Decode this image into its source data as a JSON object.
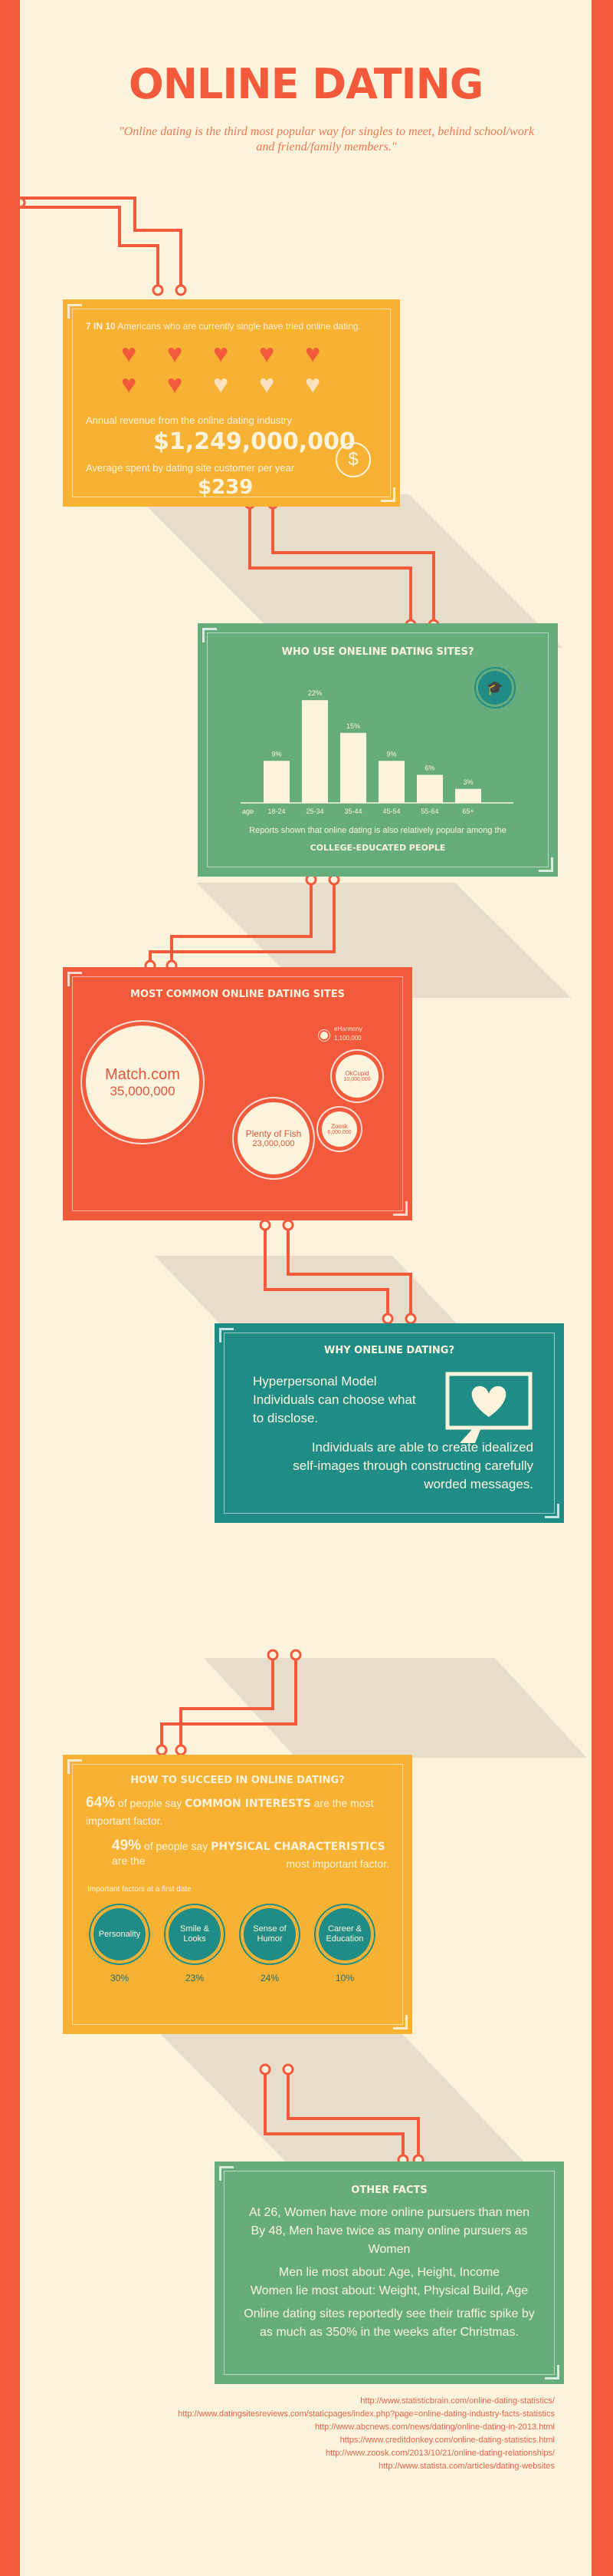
{
  "header": {
    "title": "ONLINE DATING",
    "quote": "\"Online dating is the third most popular way for singles to meet, behind school/work and friend/family members.\""
  },
  "stats": {
    "heading_strong": "7 IN 10",
    "heading_rest": "Americans who are currently single have tried online dating.",
    "hearts_filled": 7,
    "hearts_total": 10,
    "revenue_label": "Annual revenue from the online dating industry",
    "revenue_value": "$1,249,000,000",
    "spend_label": "Average spent by dating site customer per year",
    "spend_value": "$239",
    "dollar_icon": "$"
  },
  "who": {
    "title": "WHO USE ONELINE DATING SITES?",
    "age_label": "age",
    "note": "Reports shown that online dating is also relatively popular among the",
    "note_strong": "COLLEGE-EDUCATED PEOPLE"
  },
  "chart_data": {
    "type": "bar",
    "title": "WHO USE ONELINE DATING SITES?",
    "categories": [
      "18-24",
      "25-34",
      "35-44",
      "45-54",
      "55-64",
      "65+"
    ],
    "values": [
      9,
      22,
      15,
      9,
      6,
      3
    ],
    "value_labels": [
      "9%",
      "22%",
      "15%",
      "9%",
      "6%",
      "3%"
    ],
    "ylim": [
      0,
      24
    ],
    "xlabel": "age",
    "colors": {
      "bar": "#fcf3dd",
      "background": "#67ad7b"
    }
  },
  "sites": {
    "title": "MOST COMMON ONLINE DATING SITES",
    "match_name": "Match.com",
    "match_users": "35,000,000",
    "pof_name": "Plenty of Fish",
    "pof_users": "23,000,000",
    "okc_name": "OkCupid",
    "okc_users": "10,000,000",
    "zoosk_name": "Zoosk",
    "zoosk_users": "6,000,000",
    "eh_name": "eHarmony",
    "eh_users": "1,100,000"
  },
  "why": {
    "title": "WHY ONELINE DATING?",
    "line1": "Hyperpersonal Model",
    "line2": "Individuals can choose what",
    "line3": "to disclose.",
    "line4": "Individuals are able to create idealized",
    "line5": "self-images through constructing carefully",
    "line6": "worded messages."
  },
  "succeed": {
    "title": "HOW TO SUCCEED IN ONLINE DATING?",
    "p1_pct": "64%",
    "p1_mid": "of people say",
    "p1_strong": "COMMON INTERESTS",
    "p1_end": "are the most",
    "p1_line2": "important factor.",
    "p2_pct": "49%",
    "p2_mid": "of people say",
    "p2_strong": "PHYSICAL CHARACTERISTICS",
    "p2_end": "are the",
    "p2_line2": "most important factor.",
    "factors_label": "Important factors at a first date",
    "factors": [
      {
        "name": "Personality",
        "pct": "30%"
      },
      {
        "name": "Smile & Looks",
        "pct": "23%"
      },
      {
        "name": "Sense of Humor",
        "pct": "24%"
      },
      {
        "name": "Career & Education",
        "pct": "10%"
      }
    ]
  },
  "facts": {
    "title": "OTHER FACTS",
    "f1": "At 26, Women have more online pursuers than men",
    "f2": "By 48, Men have twice as many online pursuers as",
    "f3": "Women",
    "f4": "Men lie most about: Age, Height, Income",
    "f5": "Women lie most about: Weight, Physical Build, Age",
    "f6": "Online dating sites reportedly see their traffic spike by",
    "f7": "as much as 350% in the weeks after Christmas."
  },
  "sources": [
    "http://www.statisticbrain.com/online-dating-statistics/",
    "http://www.datingsitesreviews.com/staticpages/index.php?page=online-dating-industry-facts-statistics",
    "http://www.abcnews.com/news/dating/online-dating-in-2013.html",
    "https://www.creditdonkey.com/online-dating-statistics.html",
    "http://www.zoosk.com/2013/10/21/online-dating-relationships/",
    "http://www.statista.com/articles/dating-websites"
  ],
  "colors": {
    "red": "#f35a3b",
    "cream": "#fcf3dd",
    "yellow": "#f7b133",
    "green": "#67ad7b",
    "teal": "#1f8d86"
  },
  "icons": {
    "heart": "heart-icon",
    "dollar": "dollar-coin-icon",
    "cap": "graduation-cap-icon",
    "monitor": "heart-monitor-icon"
  }
}
